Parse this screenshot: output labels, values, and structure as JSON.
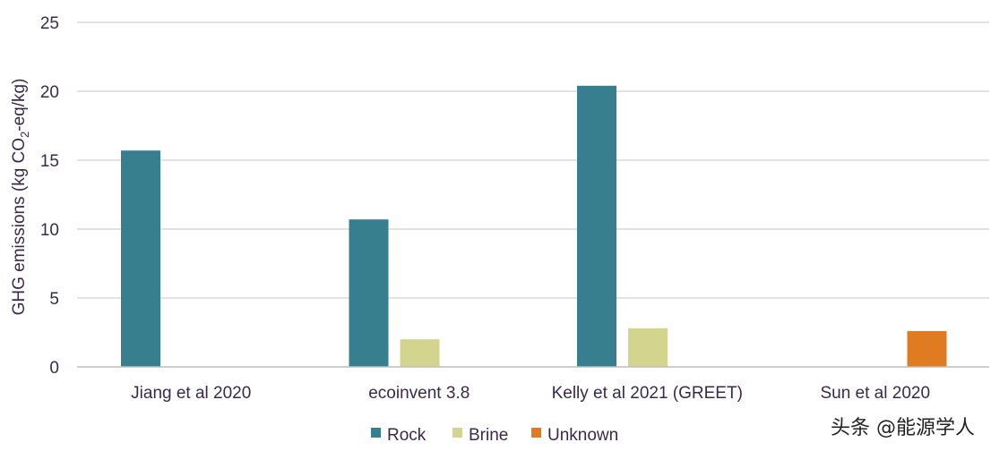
{
  "chart_data": {
    "type": "bar",
    "categories": [
      "Jiang et al 2020",
      "ecoinvent 3.8",
      "Kelly et al 2021 (GREET)",
      "Sun et al 2020"
    ],
    "series": [
      {
        "name": "Rock",
        "color": "#377f8f",
        "values": [
          15.7,
          10.7,
          20.4,
          null
        ]
      },
      {
        "name": "Brine",
        "color": "#d3d58f",
        "values": [
          null,
          2.0,
          2.8,
          null
        ]
      },
      {
        "name": "Unknown",
        "color": "#e07b22",
        "values": [
          null,
          null,
          null,
          2.6
        ]
      }
    ],
    "ylabel_parts": [
      "GHG emissions (kg CO",
      "2",
      "-eq/kg)"
    ],
    "ylim": [
      0,
      25
    ],
    "yticks": [
      0,
      5,
      10,
      15,
      20,
      25
    ],
    "grid": true,
    "legend_position": "bottom"
  },
  "watermark": "头条 @能源学人"
}
